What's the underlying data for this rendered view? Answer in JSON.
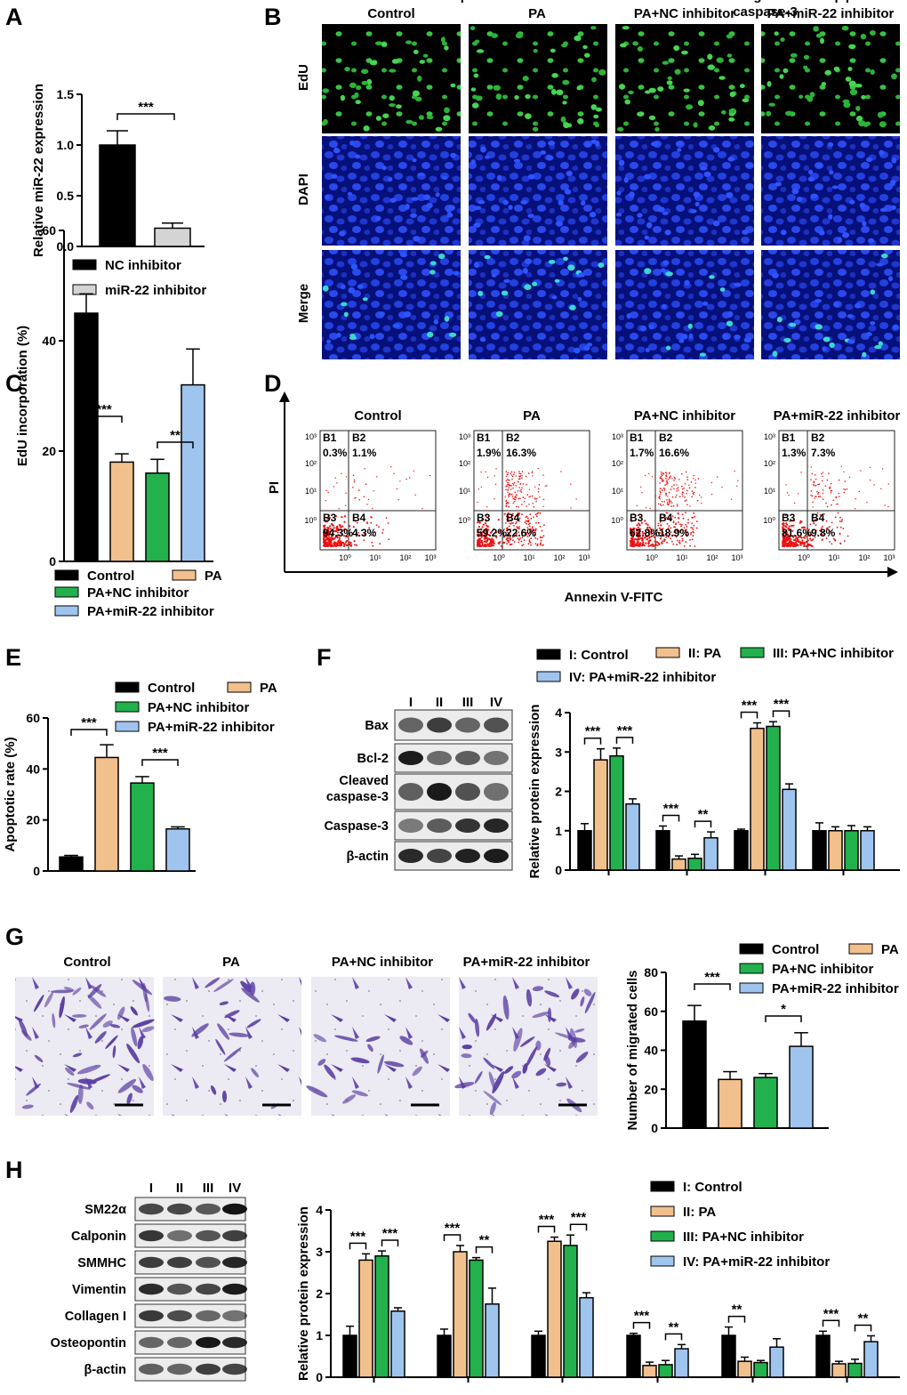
{
  "panels": {
    "A": "A",
    "B": "B",
    "C": "C",
    "D": "D",
    "E": "E",
    "F": "F",
    "G": "G",
    "H": "H"
  },
  "colors": {
    "control": "#000000",
    "pa": "#f2c08c",
    "nc": "#22b14c",
    "mir": "#9fc5ef",
    "grayBar": "#d4d4d4",
    "microscopy": "#06107a",
    "edu": "#39c443",
    "transwellBg": "#e8e8ef",
    "cell": "#5b3fa3",
    "dot": "#ee1111"
  },
  "groups": {
    "control": "Control",
    "pa": "PA",
    "nc": "PA+NC inhibitor",
    "mir": "PA+miR-22 inhibitor"
  },
  "groupsRoman": {
    "control": "I: Control",
    "pa": "II: PA",
    "nc": "III: PA+NC inhibitor",
    "mir": "IV: PA+miR-22 inhibitor"
  },
  "lanes": [
    "I",
    "II",
    "III",
    "IV"
  ],
  "stain_rows": [
    "EdU",
    "DAPI",
    "Merge"
  ],
  "flow": {
    "ylabel": "PI",
    "xlabel": "Annexin V-FITC",
    "ticks": [
      "10⁰",
      "10¹",
      "10²",
      "10³"
    ],
    "plots": [
      {
        "title": "Control",
        "b1": "B1",
        "b2": "B2",
        "b3": "B3",
        "b4": "B4",
        "q1": "0.3%",
        "q2": "1.1%",
        "q3": "94.3%",
        "q4": "4.3%"
      },
      {
        "title": "PA",
        "b1": "B1",
        "b2": "B2",
        "b3": "B3",
        "b4": "B4",
        "q1": "1.9%",
        "q2": "16.3%",
        "q3": "59.2%",
        "q4": "22.6%"
      },
      {
        "title": "PA+NC inhibitor",
        "b1": "B1",
        "b2": "B2",
        "b3": "B3",
        "b4": "B4",
        "q1": "1.7%",
        "q2": "16.6%",
        "q3": "62.8%",
        "q4": "18.9%"
      },
      {
        "title": "PA+miR-22 inhibitor",
        "b1": "B1",
        "b2": "B2",
        "b3": "B3",
        "b4": "B4",
        "q1": "1.3%",
        "q2": "7.3%",
        "q3": "81.6%",
        "q4": "9.8%"
      }
    ]
  },
  "western_F": [
    "Bax",
    "Bcl-2",
    "Cleaved caspase-3",
    "Caspase-3",
    "β-actin"
  ],
  "western_H": [
    "SM22α",
    "Calponin",
    "SMMHC",
    "Vimentin",
    "Collagen I",
    "Osteopontin",
    "β-actin"
  ],
  "chart_data": [
    {
      "id": "A",
      "type": "bar",
      "ylabel": "Relative miR-22 expression",
      "ylim": [
        0,
        1.5
      ],
      "yticks": [
        "0.0",
        "0.5",
        "1.0",
        "1.5"
      ],
      "categories": [
        "NC inhibitor",
        "miR-22 inhibitor"
      ],
      "values": [
        1.0,
        0.18
      ],
      "errors": [
        0.14,
        0.05
      ],
      "legend": [
        "NC inhibitor",
        "miR-22 inhibitor"
      ],
      "significance": [
        {
          "label": "***",
          "between": [
            0,
            1
          ]
        }
      ]
    },
    {
      "id": "C",
      "type": "bar",
      "ylabel": "EdU incorporation (%)",
      "ylim": [
        0,
        60
      ],
      "yticks": [
        "0",
        "20",
        "40",
        "60"
      ],
      "categories": [
        "Control",
        "PA",
        "PA+NC inhibitor",
        "PA+miR-22 inhibitor"
      ],
      "values": [
        45,
        18,
        16,
        32
      ],
      "errors": [
        3.5,
        1.5,
        2.5,
        6.5
      ],
      "legend": [
        "Control",
        "PA",
        "PA+NC inhibitor",
        "PA+miR-22 inhibitor"
      ],
      "significance": [
        {
          "label": "***",
          "between": [
            0,
            1
          ]
        },
        {
          "label": "**",
          "between": [
            2,
            3
          ]
        }
      ]
    },
    {
      "id": "E",
      "type": "bar",
      "ylabel": "Apoptotic rate (%)",
      "ylim": [
        0,
        60
      ],
      "yticks": [
        "0",
        "20",
        "40",
        "60"
      ],
      "categories": [
        "Control",
        "PA",
        "PA+NC inhibitor",
        "PA+miR-22 inhibitor"
      ],
      "values": [
        5.5,
        44.5,
        34.5,
        16.5
      ],
      "errors": [
        0.6,
        5,
        2.5,
        0.8
      ],
      "legend": [
        "Control",
        "PA",
        "PA+NC inhibitor",
        "PA+miR-22 inhibitor"
      ],
      "significance": [
        {
          "label": "***",
          "between": [
            0,
            1
          ]
        },
        {
          "label": "***",
          "between": [
            2,
            3
          ]
        }
      ]
    },
    {
      "id": "F",
      "type": "bar",
      "ylabel": "Relative protein expression",
      "ylim": [
        0,
        4
      ],
      "yticks": [
        "0",
        "1",
        "2",
        "3",
        "4"
      ],
      "categories": [
        "Bax",
        "Bcl-2",
        "Cleaved\ncaspase-3",
        "Caspase-3"
      ],
      "legend": [
        "I: Control",
        "II: PA",
        "III: PA+NC inhibitor",
        "IV: PA+miR-22 inhibitor"
      ],
      "series": [
        {
          "name": "I: Control",
          "values": [
            1.0,
            1.0,
            1.0,
            1.0
          ],
          "errors": [
            0.18,
            0.12,
            0.04,
            0.2
          ]
        },
        {
          "name": "II: PA",
          "values": [
            2.8,
            0.28,
            3.6,
            1.0
          ],
          "errors": [
            0.28,
            0.08,
            0.14,
            0.1
          ]
        },
        {
          "name": "III: PA+NC inhibitor",
          "values": [
            2.9,
            0.3,
            3.65,
            1.0
          ],
          "errors": [
            0.2,
            0.1,
            0.12,
            0.13
          ]
        },
        {
          "name": "IV: PA+miR-22 inhibitor",
          "values": [
            1.68,
            0.82,
            2.05,
            1.0
          ],
          "errors": [
            0.13,
            0.15,
            0.14,
            0.1
          ]
        }
      ],
      "significance": [
        {
          "cat": 0,
          "label": "***",
          "pair": [
            0,
            1
          ]
        },
        {
          "cat": 0,
          "label": "***",
          "pair": [
            2,
            3
          ]
        },
        {
          "cat": 1,
          "label": "***",
          "pair": [
            0,
            1
          ]
        },
        {
          "cat": 1,
          "label": "**",
          "pair": [
            2,
            3
          ]
        },
        {
          "cat": 2,
          "label": "***",
          "pair": [
            0,
            1
          ]
        },
        {
          "cat": 2,
          "label": "***",
          "pair": [
            2,
            3
          ]
        }
      ]
    },
    {
      "id": "G",
      "type": "bar",
      "ylabel": "Number of migrated cells",
      "ylim": [
        0,
        80
      ],
      "yticks": [
        "0",
        "20",
        "40",
        "60",
        "80"
      ],
      "categories": [
        "Control",
        "PA",
        "PA+NC inhibitor",
        "PA+miR-22 inhibitor"
      ],
      "values": [
        55,
        25,
        26,
        42
      ],
      "errors": [
        8,
        4,
        2,
        7
      ],
      "legend": [
        "Control",
        "PA",
        "PA+NC inhibitor",
        "PA+miR-22 inhibitor"
      ],
      "significance": [
        {
          "label": "***",
          "between": [
            0,
            1
          ]
        },
        {
          "label": "*",
          "between": [
            2,
            3
          ]
        }
      ]
    },
    {
      "id": "H",
      "type": "bar",
      "ylabel": "Relative protein expression",
      "ylim": [
        0,
        4
      ],
      "yticks": [
        "0",
        "1",
        "2",
        "3",
        "4"
      ],
      "categories": [
        "SM22α",
        "Calponin",
        "SMMHC",
        "Vimentin",
        "Collagen I",
        "Osteopontin"
      ],
      "legend": [
        "I: Control",
        "II: PA",
        "III: PA+NC inhibitor",
        "IV: PA+miR-22 inhibitor"
      ],
      "series": [
        {
          "name": "I: Control",
          "values": [
            1.0,
            1.0,
            1.0,
            1.0,
            1.0,
            1.0
          ],
          "errors": [
            0.22,
            0.15,
            0.1,
            0.05,
            0.2,
            0.1
          ]
        },
        {
          "name": "II: PA",
          "values": [
            2.8,
            3.0,
            3.25,
            0.28,
            0.38,
            0.32
          ],
          "errors": [
            0.15,
            0.15,
            0.1,
            0.08,
            0.1,
            0.06
          ]
        },
        {
          "name": "III: PA+NC inhibitor",
          "values": [
            2.9,
            2.8,
            3.15,
            0.3,
            0.35,
            0.33
          ],
          "errors": [
            0.12,
            0.06,
            0.25,
            0.1,
            0.05,
            0.1
          ]
        },
        {
          "name": "IV: PA+miR-22 inhibitor",
          "values": [
            1.58,
            1.75,
            1.9,
            0.68,
            0.72,
            0.85
          ],
          "errors": [
            0.08,
            0.38,
            0.12,
            0.1,
            0.2,
            0.14
          ]
        }
      ],
      "significance": [
        {
          "cat": 0,
          "label": "***",
          "pair": [
            0,
            1
          ]
        },
        {
          "cat": 0,
          "label": "***",
          "pair": [
            2,
            3
          ]
        },
        {
          "cat": 1,
          "label": "***",
          "pair": [
            0,
            1
          ]
        },
        {
          "cat": 1,
          "label": "**",
          "pair": [
            2,
            3
          ]
        },
        {
          "cat": 2,
          "label": "***",
          "pair": [
            0,
            1
          ]
        },
        {
          "cat": 2,
          "label": "***",
          "pair": [
            2,
            3
          ]
        },
        {
          "cat": 3,
          "label": "***",
          "pair": [
            0,
            1
          ]
        },
        {
          "cat": 3,
          "label": "**",
          "pair": [
            2,
            3
          ]
        },
        {
          "cat": 4,
          "label": "**",
          "pair": [
            0,
            1
          ]
        },
        {
          "cat": 5,
          "label": "***",
          "pair": [
            0,
            1
          ]
        },
        {
          "cat": 5,
          "label": "**",
          "pair": [
            2,
            3
          ]
        }
      ]
    }
  ]
}
